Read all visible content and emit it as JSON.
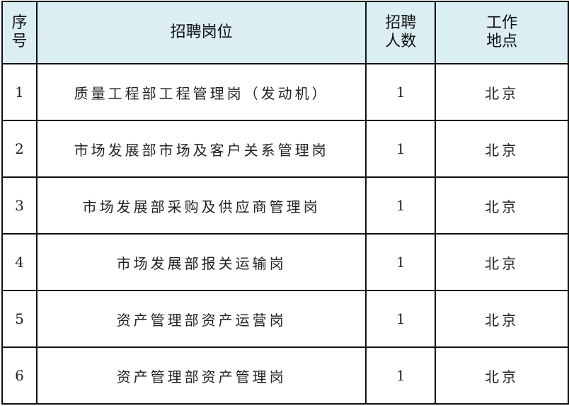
{
  "header": {
    "index": "序号",
    "position": "招聘岗位",
    "count": "招聘人数",
    "location": "工作地点"
  },
  "colors": {
    "header_bg": "#daeef3",
    "border": "#111111"
  },
  "rows": [
    {
      "index": "1",
      "position": "质量工程部工程管理岗（发动机）",
      "count": "1",
      "location": "北京"
    },
    {
      "index": "2",
      "position": "市场发展部市场及客户关系管理岗",
      "count": "1",
      "location": "北京"
    },
    {
      "index": "3",
      "position": "市场发展部采购及供应商管理岗",
      "count": "1",
      "location": "北京"
    },
    {
      "index": "4",
      "position": "市场发展部报关运输岗",
      "count": "1",
      "location": "北京"
    },
    {
      "index": "5",
      "position": "资产管理部资产运营岗",
      "count": "1",
      "location": "北京"
    },
    {
      "index": "6",
      "position": "资产管理部资产管理岗",
      "count": "1",
      "location": "北京"
    }
  ]
}
